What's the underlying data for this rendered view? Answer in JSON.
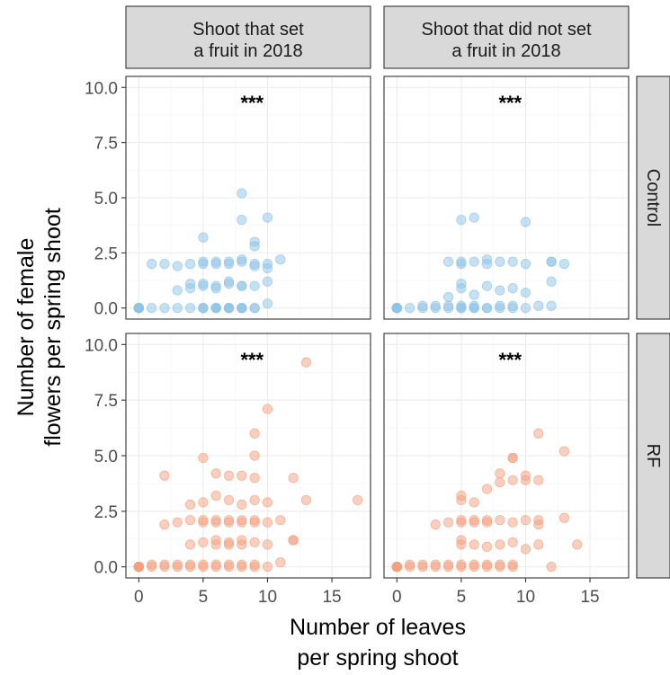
{
  "chart_data": {
    "type": "scatter",
    "facets": {
      "columns": [
        "Shoot that set\na fruit in 2018",
        "Shoot that did not set\na fruit in 2018"
      ],
      "rows": [
        "Control",
        "RF"
      ]
    },
    "xlabel": "Number of leaves\nper spring shoot",
    "ylabel": "Number of female\nflowers per spring shoot",
    "xlim": [
      -1,
      18
    ],
    "ylim": [
      -0.5,
      10.5
    ],
    "xticks": [
      0,
      5,
      10,
      15
    ],
    "yticks": [
      0.0,
      2.5,
      5.0,
      7.5,
      10.0
    ],
    "ytick_labels": [
      "0.0",
      "2.5",
      "5.0",
      "7.5",
      "10.0"
    ],
    "xtick_labels": [
      "0",
      "5",
      "10",
      "15"
    ],
    "grid": true,
    "annotation": "***",
    "colors": {
      "Control": "#8ec3e6",
      "RF": "#f3a07f"
    },
    "panels": [
      {
        "row": "Control",
        "col": 0,
        "points": [
          [
            0,
            0
          ],
          [
            0,
            0
          ],
          [
            0,
            0
          ],
          [
            0,
            0
          ],
          [
            0,
            0
          ],
          [
            0,
            0
          ],
          [
            0,
            0
          ],
          [
            0,
            0
          ],
          [
            0,
            0
          ],
          [
            0,
            0
          ],
          [
            0,
            0
          ],
          [
            0,
            0
          ],
          [
            0,
            0
          ],
          [
            0,
            0
          ],
          [
            0,
            0
          ],
          [
            0,
            0
          ],
          [
            1,
            0
          ],
          [
            2,
            0
          ],
          [
            3,
            0
          ],
          [
            4,
            0
          ],
          [
            5,
            0
          ],
          [
            5,
            0
          ],
          [
            5,
            0
          ],
          [
            6,
            0
          ],
          [
            6,
            0
          ],
          [
            6,
            0
          ],
          [
            6,
            0
          ],
          [
            7,
            0
          ],
          [
            7,
            0
          ],
          [
            7,
            0
          ],
          [
            7,
            0
          ],
          [
            8,
            0
          ],
          [
            8,
            0
          ],
          [
            8,
            0
          ],
          [
            8,
            0
          ],
          [
            9,
            0
          ],
          [
            9,
            0
          ],
          [
            10,
            0.2
          ],
          [
            1,
            2
          ],
          [
            2,
            2
          ],
          [
            3,
            1.9
          ],
          [
            4,
            2
          ],
          [
            5,
            2
          ],
          [
            5,
            2.1
          ],
          [
            6,
            2
          ],
          [
            6,
            2.1
          ],
          [
            7,
            2
          ],
          [
            7,
            2.1
          ],
          [
            8,
            2.2
          ],
          [
            8,
            2.1
          ],
          [
            9,
            2
          ],
          [
            9,
            1.9
          ],
          [
            10,
            2
          ],
          [
            10,
            1.8
          ],
          [
            11,
            2.2
          ],
          [
            3,
            0.8
          ],
          [
            4,
            0.9
          ],
          [
            4,
            1.1
          ],
          [
            5,
            1
          ],
          [
            5,
            1.1
          ],
          [
            6,
            1
          ],
          [
            6,
            0.9
          ],
          [
            7,
            1.1
          ],
          [
            7,
            1.2
          ],
          [
            8,
            1
          ],
          [
            8,
            1
          ],
          [
            9,
            1
          ],
          [
            10,
            1.2
          ],
          [
            5,
            3.2
          ],
          [
            8,
            4
          ],
          [
            8,
            5.2
          ],
          [
            10,
            4.1
          ],
          [
            9,
            3
          ],
          [
            9,
            2.8
          ]
        ]
      },
      {
        "row": "Control",
        "col": 1,
        "points": [
          [
            0,
            0
          ],
          [
            0,
            0
          ],
          [
            0,
            0
          ],
          [
            0,
            0
          ],
          [
            0,
            0
          ],
          [
            0,
            0
          ],
          [
            0,
            0
          ],
          [
            0,
            0
          ],
          [
            0,
            0
          ],
          [
            0,
            0
          ],
          [
            0,
            0
          ],
          [
            0,
            0
          ],
          [
            0,
            0
          ],
          [
            0,
            0
          ],
          [
            1,
            0
          ],
          [
            2,
            0
          ],
          [
            2,
            0.1
          ],
          [
            3,
            0
          ],
          [
            3,
            0.1
          ],
          [
            4,
            0
          ],
          [
            4,
            0.1
          ],
          [
            5,
            0
          ],
          [
            5,
            0
          ],
          [
            5,
            0.1
          ],
          [
            6,
            0
          ],
          [
            6,
            0
          ],
          [
            6,
            0.1
          ],
          [
            7,
            0
          ],
          [
            7,
            0
          ],
          [
            8,
            0
          ],
          [
            8,
            0.1
          ],
          [
            9,
            0
          ],
          [
            9,
            0.1
          ],
          [
            10,
            0
          ],
          [
            11,
            0.1
          ],
          [
            12,
            0.1
          ],
          [
            4,
            2.1
          ],
          [
            5,
            2
          ],
          [
            5,
            2.1
          ],
          [
            6,
            2.1
          ],
          [
            7,
            2
          ],
          [
            7,
            2.2
          ],
          [
            8,
            2.1
          ],
          [
            9,
            2.1
          ],
          [
            10,
            2
          ],
          [
            12,
            2.1
          ],
          [
            12,
            2.1
          ],
          [
            13,
            2
          ],
          [
            4,
            0.5
          ],
          [
            5,
            0.9
          ],
          [
            5,
            1.1
          ],
          [
            6,
            0.6
          ],
          [
            7,
            1
          ],
          [
            8,
            0.8
          ],
          [
            9,
            0.9
          ],
          [
            10,
            0.7
          ],
          [
            12,
            1.2
          ],
          [
            5,
            4
          ],
          [
            6,
            4.1
          ],
          [
            10,
            3.9
          ]
        ]
      },
      {
        "row": "RF",
        "col": 0,
        "points": [
          [
            0,
            0
          ],
          [
            0,
            0
          ],
          [
            0,
            0
          ],
          [
            0,
            0
          ],
          [
            0,
            0
          ],
          [
            0,
            0
          ],
          [
            0,
            0
          ],
          [
            0,
            0
          ],
          [
            0,
            0
          ],
          [
            0,
            0
          ],
          [
            0,
            0
          ],
          [
            0,
            0
          ],
          [
            0,
            0
          ],
          [
            0,
            0
          ],
          [
            0,
            0
          ],
          [
            0,
            0
          ],
          [
            0,
            0
          ],
          [
            0,
            0
          ],
          [
            1,
            0
          ],
          [
            1,
            0.1
          ],
          [
            2,
            0
          ],
          [
            2,
            0.1
          ],
          [
            3,
            0
          ],
          [
            3,
            0.1
          ],
          [
            4,
            0
          ],
          [
            4,
            0.1
          ],
          [
            5,
            0
          ],
          [
            5,
            0.1
          ],
          [
            6,
            0
          ],
          [
            6,
            0.1
          ],
          [
            7,
            0
          ],
          [
            7,
            0.1
          ],
          [
            8,
            0
          ],
          [
            8,
            0.1
          ],
          [
            9,
            0
          ],
          [
            9,
            0.1
          ],
          [
            10,
            0
          ],
          [
            11,
            0.2
          ],
          [
            2,
            1.9
          ],
          [
            3,
            2
          ],
          [
            4,
            2.1
          ],
          [
            5,
            2
          ],
          [
            5,
            2.1
          ],
          [
            6,
            2
          ],
          [
            6,
            2.1
          ],
          [
            7,
            2
          ],
          [
            7,
            2.1
          ],
          [
            8,
            2
          ],
          [
            8,
            2.1
          ],
          [
            9,
            2
          ],
          [
            9,
            2.1
          ],
          [
            10,
            2
          ],
          [
            11,
            2.1
          ],
          [
            12,
            1.2
          ],
          [
            12,
            1.2
          ],
          [
            4,
            1
          ],
          [
            5,
            1.1
          ],
          [
            6,
            1
          ],
          [
            6,
            1.2
          ],
          [
            7,
            1
          ],
          [
            7,
            1.1
          ],
          [
            8,
            1
          ],
          [
            8,
            1.2
          ],
          [
            9,
            1.1
          ],
          [
            10,
            1
          ],
          [
            4,
            2.8
          ],
          [
            5,
            2.9
          ],
          [
            6,
            3.2
          ],
          [
            7,
            3
          ],
          [
            8,
            2.8
          ],
          [
            9,
            3
          ],
          [
            10,
            2.9
          ],
          [
            13,
            3
          ],
          [
            17,
            3
          ],
          [
            2,
            4.1
          ],
          [
            5,
            4.9
          ],
          [
            6,
            4.2
          ],
          [
            7,
            4.1
          ],
          [
            8,
            4.1
          ],
          [
            9,
            4
          ],
          [
            9,
            5
          ],
          [
            9,
            6
          ],
          [
            10,
            7.1
          ],
          [
            12,
            4
          ],
          [
            13,
            9.2
          ]
        ]
      },
      {
        "row": "RF",
        "col": 1,
        "points": [
          [
            0,
            0
          ],
          [
            0,
            0
          ],
          [
            0,
            0
          ],
          [
            0,
            0
          ],
          [
            0,
            0
          ],
          [
            0,
            0
          ],
          [
            0,
            0
          ],
          [
            0,
            0
          ],
          [
            0,
            0
          ],
          [
            0,
            0
          ],
          [
            0,
            0
          ],
          [
            0,
            0
          ],
          [
            0,
            0
          ],
          [
            0,
            0
          ],
          [
            1,
            0
          ],
          [
            1,
            0.1
          ],
          [
            2,
            0
          ],
          [
            2,
            0.1
          ],
          [
            3,
            0
          ],
          [
            3,
            0.1
          ],
          [
            4,
            0
          ],
          [
            4,
            0.1
          ],
          [
            5,
            0
          ],
          [
            5,
            0.1
          ],
          [
            6,
            0
          ],
          [
            6,
            0.1
          ],
          [
            7,
            0
          ],
          [
            7,
            0.1
          ],
          [
            8,
            0
          ],
          [
            8,
            0.1
          ],
          [
            9,
            0
          ],
          [
            9,
            0.1
          ],
          [
            12,
            0
          ],
          [
            3,
            1.9
          ],
          [
            4,
            2
          ],
          [
            5,
            2
          ],
          [
            5,
            2.1
          ],
          [
            6,
            2
          ],
          [
            6,
            2.1
          ],
          [
            7,
            2
          ],
          [
            7,
            2.1
          ],
          [
            8,
            2.1
          ],
          [
            9,
            2
          ],
          [
            10,
            2.1
          ],
          [
            11,
            2.1
          ],
          [
            11,
            1.9
          ],
          [
            13,
            2.2
          ],
          [
            5,
            1
          ],
          [
            5,
            1.2
          ],
          [
            6,
            1
          ],
          [
            7,
            0.9
          ],
          [
            8,
            1
          ],
          [
            9,
            1.1
          ],
          [
            10,
            0.8
          ],
          [
            11,
            1
          ],
          [
            14,
            1
          ],
          [
            5,
            3
          ],
          [
            5,
            3.2
          ],
          [
            6,
            2.9
          ],
          [
            7,
            3.5
          ],
          [
            8,
            3.8
          ],
          [
            8,
            4.2
          ],
          [
            9,
            3.9
          ],
          [
            9,
            4.9
          ],
          [
            9,
            4.9
          ],
          [
            10,
            4.1
          ],
          [
            10,
            3.9
          ],
          [
            11,
            3.9
          ],
          [
            11,
            6
          ],
          [
            13,
            5.2
          ]
        ]
      }
    ]
  }
}
